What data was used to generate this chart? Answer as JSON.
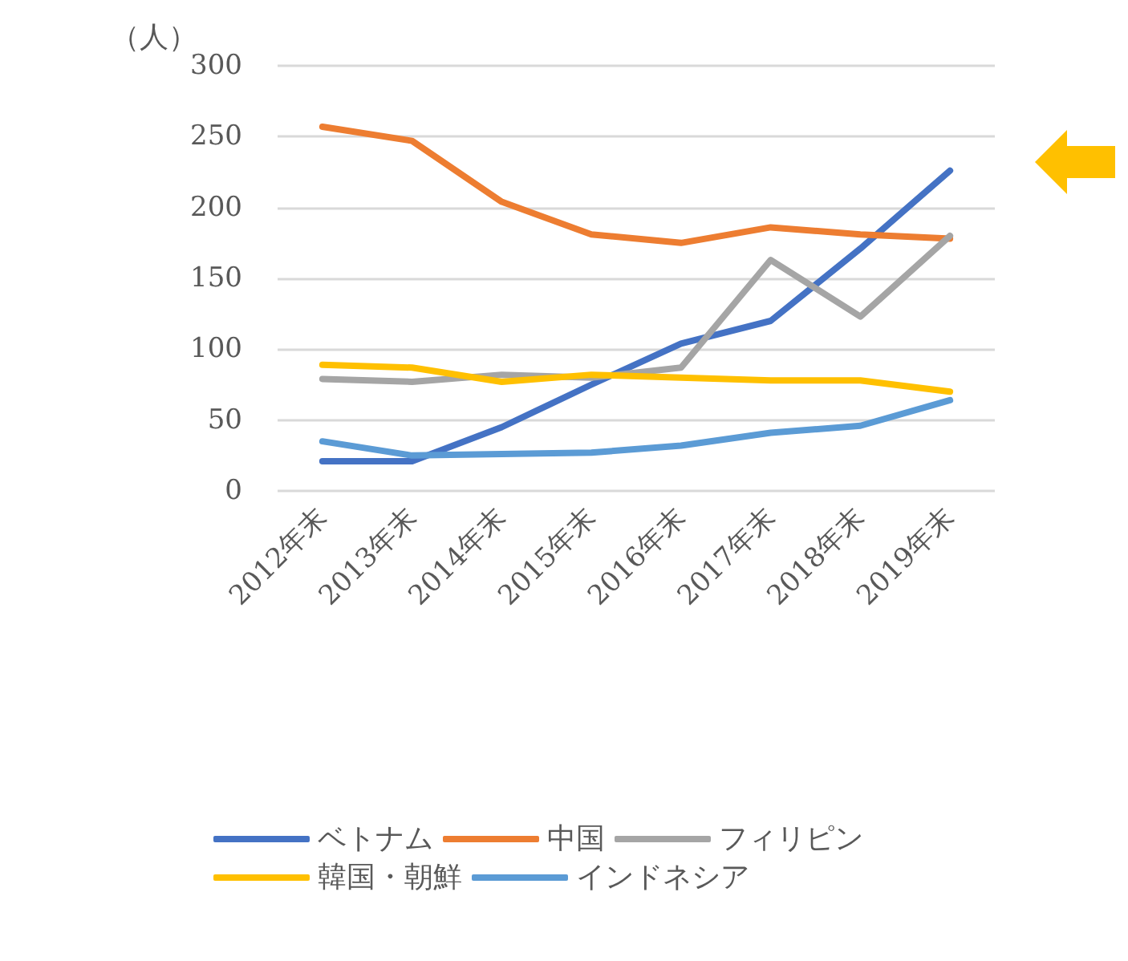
{
  "chart_data": {
    "type": "line",
    "ylabel": "（人）",
    "categories": [
      "2012年末",
      "2013年末",
      "2014年末",
      "2015年末",
      "2016年末",
      "2017年末",
      "2018年末",
      "2019年末"
    ],
    "series": [
      {
        "name": "ベトナム",
        "color": "#4472c4",
        "values": [
          21,
          21,
          45,
          75,
          104,
          120,
          171,
          226
        ]
      },
      {
        "name": "中国",
        "color": "#ed7d31",
        "values": [
          257,
          247,
          204,
          181,
          175,
          186,
          181,
          178
        ]
      },
      {
        "name": "フィリピン",
        "color": "#a5a5a5",
        "values": [
          79,
          77,
          82,
          80,
          87,
          163,
          123,
          180
        ]
      },
      {
        "name": "韓国・朝鮮",
        "color": "#ffc000",
        "values": [
          89,
          87,
          77,
          82,
          80,
          78,
          78,
          70
        ]
      },
      {
        "name": "インドネシア",
        "color": "#5b9bd5",
        "values": [
          35,
          25,
          26,
          27,
          32,
          41,
          46,
          64
        ]
      }
    ],
    "ylim": [
      0,
      300
    ],
    "yticks": [
      0,
      50,
      100,
      150,
      200,
      250,
      300
    ],
    "grid": "y",
    "legend": "bottom",
    "marker": "none",
    "line_style": "solid"
  }
}
